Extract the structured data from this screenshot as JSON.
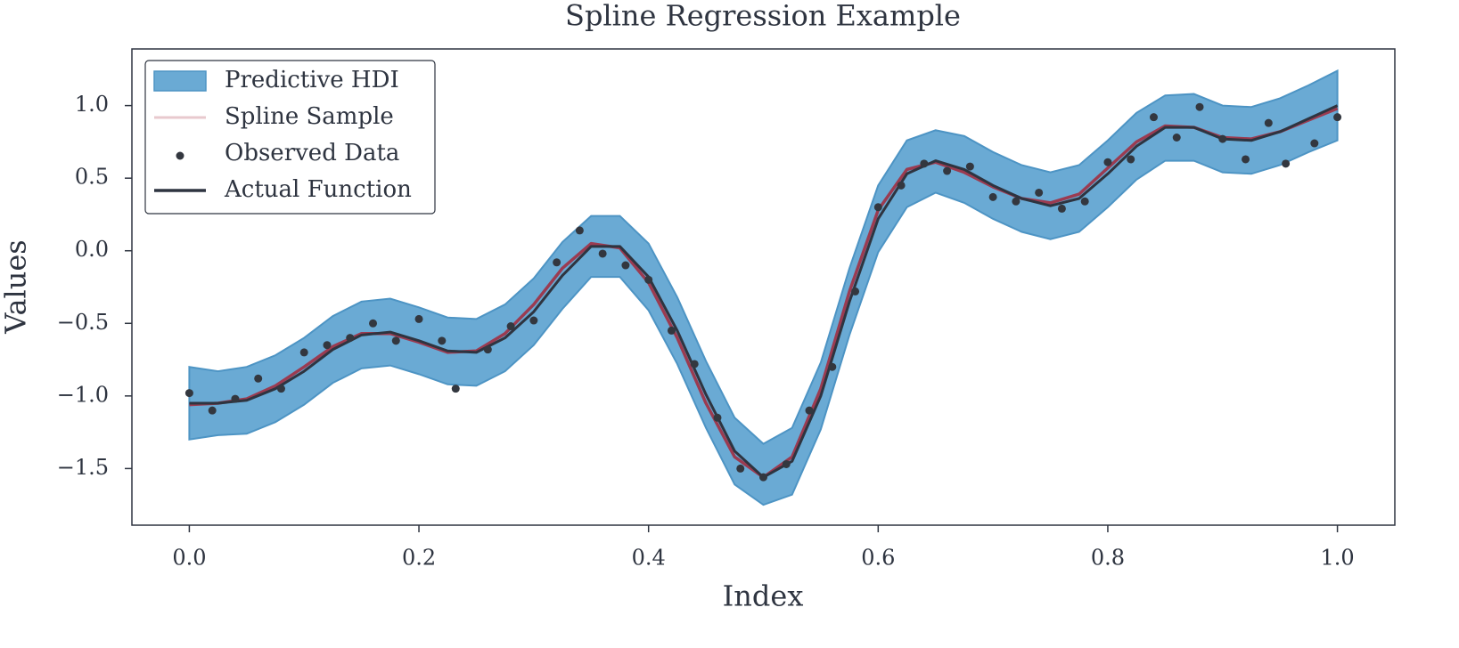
{
  "chart_data": {
    "type": "line",
    "title": "Spline Regression Example",
    "xlabel": "Index",
    "ylabel": "Values",
    "xlim": [
      -0.05,
      1.05
    ],
    "ylim": [
      -1.89,
      1.39
    ],
    "xticks": [
      {
        "value": 0,
        "label": "0.0"
      },
      {
        "value": 0.2,
        "label": "0.2"
      },
      {
        "value": 0.4,
        "label": "0.4"
      },
      {
        "value": 0.6,
        "label": "0.6"
      },
      {
        "value": 0.8,
        "label": "0.8"
      },
      {
        "value": 1,
        "label": "1.0"
      }
    ],
    "yticks": [
      {
        "value": -1.5,
        "label": "−1.5"
      },
      {
        "value": -1,
        "label": "−1.0"
      },
      {
        "value": -0.5,
        "label": "−0.5"
      },
      {
        "value": 0,
        "label": "0.0"
      },
      {
        "value": 0.5,
        "label": "0.5"
      },
      {
        "value": 1,
        "label": "1.0"
      }
    ],
    "legend": "upper left",
    "x": [
      0,
      0.025,
      0.05,
      0.075,
      0.1,
      0.125,
      0.15,
      0.175,
      0.2,
      0.225,
      0.25,
      0.275,
      0.3,
      0.325,
      0.35,
      0.375,
      0.4,
      0.425,
      0.45,
      0.475,
      0.5,
      0.525,
      0.55,
      0.575,
      0.6,
      0.625,
      0.65,
      0.675,
      0.7,
      0.725,
      0.75,
      0.775,
      0.8,
      0.825,
      0.85,
      0.875,
      0.9,
      0.925,
      0.95,
      0.975,
      1
    ],
    "band": {
      "name": "Predictive HDI",
      "color": "#6aaad4",
      "edge": "#4d94c4",
      "upper": [
        -0.8,
        -0.83,
        -0.8,
        -0.72,
        -0.6,
        -0.45,
        -0.35,
        -0.33,
        -0.39,
        -0.46,
        -0.47,
        -0.37,
        -0.19,
        0.06,
        0.24,
        0.24,
        0.05,
        -0.32,
        -0.76,
        -1.15,
        -1.33,
        -1.22,
        -0.77,
        -0.12,
        0.45,
        0.76,
        0.83,
        0.79,
        0.68,
        0.59,
        0.54,
        0.59,
        0.76,
        0.95,
        1.07,
        1.08,
        1.0,
        0.99,
        1.05,
        1.14,
        1.24
      ],
      "lower": [
        -1.3,
        -1.27,
        -1.26,
        -1.18,
        -1.06,
        -0.91,
        -0.81,
        -0.79,
        -0.85,
        -0.92,
        -0.93,
        -0.83,
        -0.65,
        -0.4,
        -0.18,
        -0.18,
        -0.41,
        -0.78,
        -1.22,
        -1.61,
        -1.75,
        -1.68,
        -1.23,
        -0.58,
        -0.01,
        0.3,
        0.4,
        0.33,
        0.22,
        0.13,
        0.08,
        0.13,
        0.3,
        0.49,
        0.62,
        0.62,
        0.54,
        0.53,
        0.59,
        0.68,
        0.76
      ]
    },
    "series": [
      {
        "name": "Spline Sample",
        "color": "#a3283a",
        "values": [
          -1.06,
          -1.05,
          -1.02,
          -0.93,
          -0.8,
          -0.66,
          -0.57,
          -0.57,
          -0.63,
          -0.7,
          -0.69,
          -0.57,
          -0.37,
          -0.12,
          0.05,
          0.02,
          -0.22,
          -0.6,
          -1.05,
          -1.42,
          -1.56,
          -1.42,
          -0.95,
          -0.28,
          0.28,
          0.56,
          0.61,
          0.54,
          0.44,
          0.36,
          0.33,
          0.39,
          0.57,
          0.75,
          0.86,
          0.85,
          0.78,
          0.77,
          0.82,
          0.9,
          0.98
        ]
      },
      {
        "name": "Actual Function",
        "color": "#2e3440",
        "values": [
          -1.05,
          -1.05,
          -1.03,
          -0.95,
          -0.83,
          -0.68,
          -0.58,
          -0.56,
          -0.62,
          -0.69,
          -0.7,
          -0.6,
          -0.42,
          -0.17,
          0.03,
          0.03,
          -0.18,
          -0.55,
          -0.99,
          -1.38,
          -1.56,
          -1.45,
          -1.0,
          -0.35,
          0.22,
          0.53,
          0.62,
          0.56,
          0.45,
          0.36,
          0.31,
          0.36,
          0.53,
          0.72,
          0.85,
          0.85,
          0.77,
          0.76,
          0.82,
          0.91,
          1.0
        ]
      }
    ],
    "scatter": {
      "name": "Observed Data",
      "color": "#33373f",
      "x": [
        0,
        0.02,
        0.04,
        0.06,
        0.08,
        0.1,
        0.12,
        0.14,
        0.16,
        0.18,
        0.2,
        0.22,
        0.232,
        0.26,
        0.28,
        0.3,
        0.32,
        0.34,
        0.36,
        0.38,
        0.4,
        0.42,
        0.44,
        0.46,
        0.48,
        0.5,
        0.52,
        0.54,
        0.56,
        0.58,
        0.6,
        0.62,
        0.64,
        0.66,
        0.68,
        0.7,
        0.72,
        0.74,
        0.76,
        0.78,
        0.8,
        0.82,
        0.84,
        0.86,
        0.88,
        0.9,
        0.92,
        0.94,
        0.955,
        0.98,
        1
      ],
      "values": [
        -0.98,
        -1.1,
        -1.02,
        -0.88,
        -0.95,
        -0.7,
        -0.65,
        -0.6,
        -0.5,
        -0.62,
        -0.47,
        -0.62,
        -0.95,
        -0.68,
        -0.52,
        -0.48,
        -0.08,
        0.14,
        -0.02,
        -0.1,
        -0.2,
        -0.55,
        -0.78,
        -1.15,
        -1.5,
        -1.56,
        -1.47,
        -1.1,
        -0.8,
        -0.28,
        0.3,
        0.45,
        0.6,
        0.55,
        0.58,
        0.37,
        0.34,
        0.4,
        0.29,
        0.34,
        0.61,
        0.63,
        0.92,
        0.78,
        0.99,
        0.77,
        0.63,
        0.88,
        0.6,
        0.74,
        0.92
      ]
    }
  }
}
